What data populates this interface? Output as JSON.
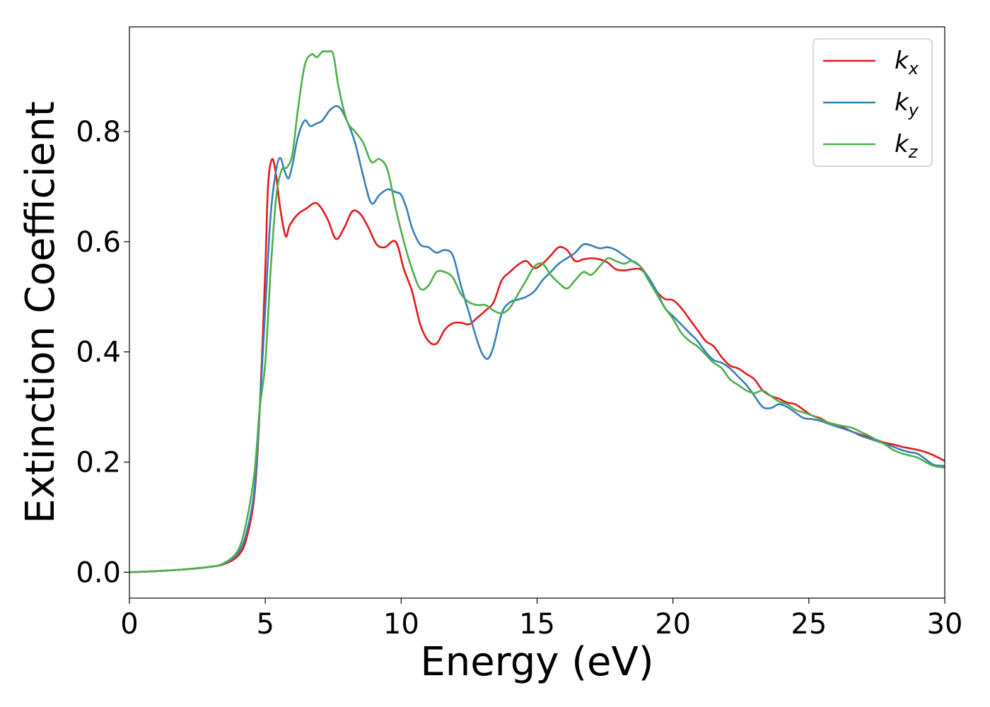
{
  "chart_data": {
    "type": "line",
    "title": "",
    "xlabel": "Energy (eV)",
    "ylabel": "Extinction Coefficient",
    "xlim": [
      0,
      30
    ],
    "ylim": [
      -0.047,
      0.99
    ],
    "xticks": [
      0,
      5,
      10,
      15,
      20,
      25,
      30
    ],
    "xtick_labels": [
      "0",
      "5",
      "10",
      "15",
      "20",
      "25",
      "30"
    ],
    "yticks": [
      0.0,
      0.2,
      0.4,
      0.6,
      0.8
    ],
    "ytick_labels": [
      "0.0",
      "0.2",
      "0.4",
      "0.6",
      "0.8"
    ],
    "grid": false,
    "legend_position": "top-right",
    "series": [
      {
        "name": "k_x",
        "label_base": "k",
        "label_sub": "x",
        "color": "#e41a1c",
        "x": [
          0,
          1,
          2,
          3,
          3.5,
          4,
          4.3,
          4.6,
          4.8,
          5.0,
          5.1,
          5.25,
          5.4,
          5.55,
          5.75,
          5.9,
          6.2,
          6.5,
          6.8,
          7.0,
          7.3,
          7.6,
          7.9,
          8.2,
          8.5,
          8.8,
          9.1,
          9.4,
          9.8,
          10.1,
          10.4,
          10.7,
          11.0,
          11.3,
          11.6,
          11.9,
          12.2,
          12.5,
          12.8,
          13.1,
          13.4,
          13.7,
          14.0,
          14.3,
          14.6,
          14.9,
          15.2,
          15.5,
          15.8,
          16.1,
          16.4,
          16.7,
          17.0,
          17.3,
          17.6,
          17.9,
          18.2,
          18.5,
          18.8,
          19.1,
          19.4,
          19.7,
          20.0,
          20.3,
          20.6,
          20.9,
          21.2,
          21.5,
          21.8,
          22.1,
          22.4,
          22.7,
          23.0,
          23.3,
          23.6,
          23.9,
          24.2,
          24.5,
          24.8,
          25.1,
          25.4,
          25.7,
          26.0,
          26.3,
          26.6,
          26.9,
          27.2,
          27.5,
          27.8,
          28.1,
          28.4,
          28.7,
          29.0,
          29.3,
          29.6,
          30.0
        ],
        "y": [
          0.0,
          0.002,
          0.005,
          0.01,
          0.015,
          0.03,
          0.06,
          0.14,
          0.3,
          0.55,
          0.7,
          0.75,
          0.72,
          0.66,
          0.61,
          0.63,
          0.65,
          0.66,
          0.67,
          0.665,
          0.64,
          0.605,
          0.625,
          0.655,
          0.65,
          0.625,
          0.595,
          0.59,
          0.6,
          0.55,
          0.51,
          0.45,
          0.42,
          0.415,
          0.44,
          0.452,
          0.453,
          0.45,
          0.462,
          0.475,
          0.49,
          0.53,
          0.545,
          0.558,
          0.565,
          0.552,
          0.56,
          0.575,
          0.59,
          0.585,
          0.565,
          0.568,
          0.57,
          0.568,
          0.562,
          0.55,
          0.548,
          0.55,
          0.55,
          0.535,
          0.51,
          0.496,
          0.494,
          0.48,
          0.46,
          0.44,
          0.42,
          0.41,
          0.39,
          0.375,
          0.37,
          0.36,
          0.35,
          0.33,
          0.32,
          0.315,
          0.308,
          0.305,
          0.295,
          0.285,
          0.28,
          0.272,
          0.268,
          0.262,
          0.255,
          0.25,
          0.245,
          0.24,
          0.235,
          0.232,
          0.228,
          0.225,
          0.222,
          0.218,
          0.212,
          0.202
        ]
      },
      {
        "name": "k_y",
        "label_base": "k",
        "label_sub": "y",
        "color": "#377eb8",
        "x": [
          0,
          1,
          2,
          3,
          3.5,
          4,
          4.3,
          4.6,
          4.8,
          5.0,
          5.2,
          5.4,
          5.55,
          5.7,
          5.85,
          6.0,
          6.2,
          6.45,
          6.65,
          6.9,
          7.1,
          7.4,
          7.7,
          8.0,
          8.3,
          8.6,
          8.9,
          9.2,
          9.5,
          9.8,
          10.0,
          10.2,
          10.4,
          10.7,
          11.0,
          11.3,
          11.6,
          11.9,
          12.2,
          12.5,
          12.8,
          13.0,
          13.2,
          13.4,
          13.7,
          14.0,
          14.3,
          14.6,
          14.9,
          15.2,
          15.5,
          15.8,
          16.1,
          16.4,
          16.7,
          17.0,
          17.3,
          17.6,
          17.9,
          18.2,
          18.5,
          18.8,
          19.1,
          19.4,
          19.7,
          20.0,
          20.3,
          20.6,
          20.9,
          21.2,
          21.5,
          21.8,
          22.1,
          22.4,
          22.7,
          23.0,
          23.3,
          23.6,
          23.9,
          24.2,
          24.5,
          24.8,
          25.1,
          25.4,
          25.7,
          26.0,
          26.3,
          26.6,
          26.9,
          27.2,
          27.5,
          27.8,
          28.1,
          28.4,
          28.7,
          29.0,
          29.3,
          29.6,
          30.0
        ],
        "y": [
          0.0,
          0.002,
          0.005,
          0.01,
          0.016,
          0.035,
          0.07,
          0.15,
          0.3,
          0.48,
          0.65,
          0.73,
          0.752,
          0.73,
          0.715,
          0.74,
          0.79,
          0.82,
          0.81,
          0.815,
          0.82,
          0.84,
          0.845,
          0.82,
          0.78,
          0.72,
          0.67,
          0.685,
          0.695,
          0.69,
          0.685,
          0.66,
          0.625,
          0.595,
          0.59,
          0.58,
          0.585,
          0.575,
          0.52,
          0.47,
          0.42,
          0.395,
          0.388,
          0.41,
          0.47,
          0.49,
          0.495,
          0.5,
          0.51,
          0.53,
          0.545,
          0.56,
          0.57,
          0.58,
          0.595,
          0.593,
          0.588,
          0.59,
          0.585,
          0.575,
          0.565,
          0.555,
          0.535,
          0.51,
          0.48,
          0.465,
          0.45,
          0.435,
          0.42,
          0.4,
          0.385,
          0.38,
          0.37,
          0.355,
          0.34,
          0.32,
          0.3,
          0.298,
          0.305,
          0.3,
          0.29,
          0.28,
          0.278,
          0.275,
          0.27,
          0.265,
          0.26,
          0.255,
          0.248,
          0.243,
          0.238,
          0.233,
          0.228,
          0.222,
          0.218,
          0.215,
          0.205,
          0.195,
          0.193
        ]
      },
      {
        "name": "k_z",
        "label_base": "k",
        "label_sub": "z",
        "color": "#4daf4a",
        "x": [
          0,
          1,
          2,
          3,
          3.5,
          4,
          4.3,
          4.6,
          4.8,
          5.0,
          5.2,
          5.4,
          5.6,
          5.8,
          6.0,
          6.2,
          6.45,
          6.7,
          6.9,
          7.1,
          7.3,
          7.5,
          7.7,
          8.0,
          8.3,
          8.6,
          8.9,
          9.2,
          9.5,
          9.8,
          10.1,
          10.4,
          10.7,
          11.0,
          11.3,
          11.6,
          11.9,
          12.2,
          12.5,
          12.8,
          13.1,
          13.4,
          13.7,
          14.0,
          14.3,
          14.6,
          14.9,
          15.2,
          15.5,
          15.8,
          16.1,
          16.4,
          16.7,
          17.0,
          17.3,
          17.6,
          17.9,
          18.2,
          18.5,
          18.8,
          19.1,
          19.4,
          19.7,
          20.0,
          20.3,
          20.6,
          20.9,
          21.2,
          21.5,
          21.8,
          22.1,
          22.4,
          22.7,
          23.0,
          23.3,
          23.6,
          23.9,
          24.2,
          24.5,
          24.8,
          25.1,
          25.4,
          25.7,
          26.0,
          26.3,
          26.6,
          26.9,
          27.2,
          27.5,
          27.8,
          28.1,
          28.4,
          28.7,
          29.0,
          29.3,
          29.6,
          30.0
        ],
        "y": [
          0.0,
          0.002,
          0.005,
          0.01,
          0.017,
          0.04,
          0.09,
          0.18,
          0.3,
          0.38,
          0.55,
          0.68,
          0.73,
          0.735,
          0.76,
          0.84,
          0.92,
          0.94,
          0.935,
          0.945,
          0.945,
          0.94,
          0.88,
          0.82,
          0.8,
          0.78,
          0.745,
          0.75,
          0.73,
          0.66,
          0.6,
          0.55,
          0.515,
          0.52,
          0.545,
          0.545,
          0.535,
          0.505,
          0.49,
          0.485,
          0.485,
          0.475,
          0.47,
          0.48,
          0.505,
          0.53,
          0.555,
          0.56,
          0.54,
          0.525,
          0.515,
          0.53,
          0.545,
          0.54,
          0.555,
          0.57,
          0.565,
          0.56,
          0.565,
          0.555,
          0.53,
          0.505,
          0.48,
          0.46,
          0.435,
          0.42,
          0.41,
          0.395,
          0.38,
          0.37,
          0.35,
          0.34,
          0.33,
          0.325,
          0.33,
          0.32,
          0.31,
          0.305,
          0.295,
          0.29,
          0.285,
          0.278,
          0.272,
          0.268,
          0.265,
          0.262,
          0.255,
          0.248,
          0.24,
          0.232,
          0.222,
          0.216,
          0.212,
          0.208,
          0.2,
          0.193,
          0.19
        ]
      }
    ]
  }
}
